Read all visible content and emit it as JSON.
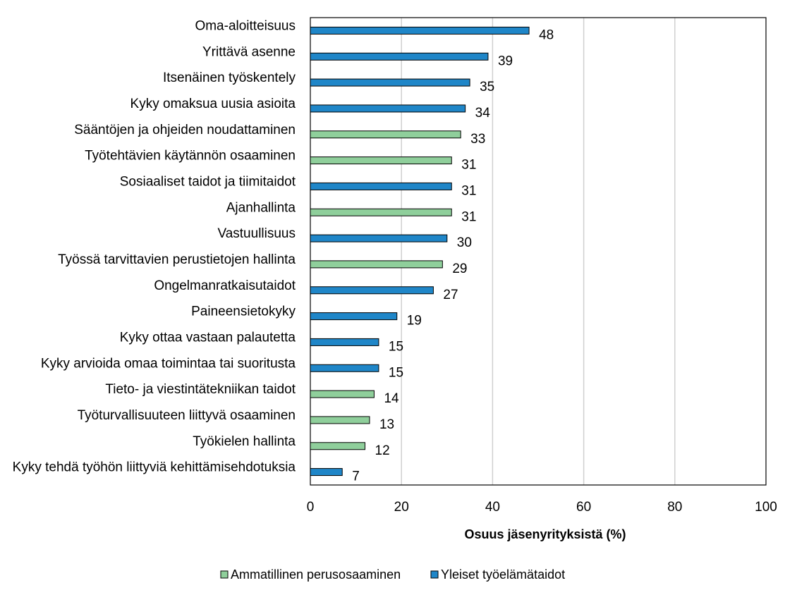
{
  "chart_data": {
    "type": "bar",
    "orientation": "horizontal",
    "xlabel": "Osuus jäsenyrityksistä (%)",
    "xlim": [
      0,
      100
    ],
    "xticks": [
      0,
      20,
      40,
      60,
      80,
      100
    ],
    "grid": "vertical",
    "legend_position": "bottom",
    "series": [
      {
        "name": "Ammatillinen perusosaaminen",
        "color": "#8fcf9b"
      },
      {
        "name": "Yleiset työelämätaidot",
        "color": "#1f86c8"
      }
    ],
    "categories": [
      "Oma-aloitteisuus",
      "Yrittävä asenne",
      "Itsenäinen työskentely",
      "Kyky omaksua uusia asioita",
      "Sääntöjen ja ohjeiden noudattaminen",
      "Työtehtävien käytännön osaaminen",
      "Sosiaaliset taidot ja tiimitaidot",
      "Ajanhallinta",
      "Vastuullisuus",
      "Työssä tarvittavien perustietojen hallinta",
      "Ongelmanratkaisutaidot",
      "Paineensietokyky",
      "Kyky ottaa vastaan palautetta",
      "Kyky arvioida omaa toimintaa tai suoritusta",
      "Tieto- ja viestintätekniikan taidot",
      "Työturvallisuuteen liittyvä osaaminen",
      "Työkielen hallinta",
      "Kyky tehdä työhön liittyviä kehittämisehdotuksia"
    ],
    "values": [
      48,
      39,
      35,
      34,
      33,
      31,
      31,
      31,
      30,
      29,
      27,
      19,
      15,
      15,
      14,
      13,
      12,
      7
    ],
    "bar_series": [
      "Yleiset työelämätaidot",
      "Yleiset työelämätaidot",
      "Yleiset työelämätaidot",
      "Yleiset työelämätaidot",
      "Ammatillinen perusosaaminen",
      "Ammatillinen perusosaaminen",
      "Yleiset työelämätaidot",
      "Ammatillinen perusosaaminen",
      "Yleiset työelämätaidot",
      "Ammatillinen perusosaaminen",
      "Yleiset työelämätaidot",
      "Yleiset työelämätaidot",
      "Yleiset työelämätaidot",
      "Yleiset työelämätaidot",
      "Ammatillinen perusosaaminen",
      "Ammatillinen perusosaaminen",
      "Ammatillinen perusosaaminen",
      "Yleiset työelämätaidot"
    ],
    "value_labels": [
      "48",
      "39",
      "35",
      "34",
      "33",
      "31",
      "31",
      "31",
      "30",
      "29",
      "27",
      "19",
      "15",
      "15",
      "14",
      "13",
      "12",
      "7"
    ]
  }
}
